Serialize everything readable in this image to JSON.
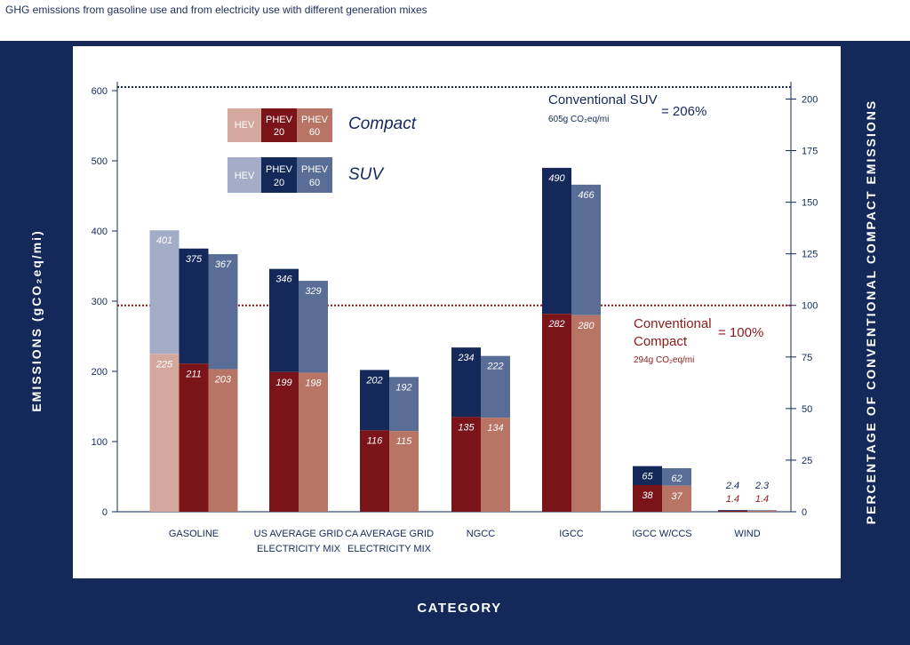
{
  "page_title": "GHG emissions from gasoline use and from electricity use with different generation mixes",
  "legend": {
    "hev": "HEV",
    "phev20_line1": "PHEV",
    "phev20_line2": "20",
    "phev60_line1": "PHEV",
    "phev60_line2": "60",
    "compact_label": "Compact",
    "suv_label": "SUV"
  },
  "colors": {
    "compact_hev": "#d4a89d",
    "compact_phev20": "#7a1419",
    "compact_phev60": "#b87566",
    "suv_hev": "#a3adc8",
    "suv_phev20": "#14285a",
    "suv_phev60": "#5a6d96",
    "frame": "#14285a",
    "ref_suv": "#14285a",
    "ref_compact": "#8b1a1a"
  },
  "annotations": {
    "suv_ref_name": "Conventional SUV",
    "suv_ref_value": "605g CO₂eq/mi",
    "suv_ref_pct": "= 206%",
    "compact_ref_name_line1": "Conventional",
    "compact_ref_name_line2": "Compact",
    "compact_ref_value": "294g CO₂eq/mi",
    "compact_ref_pct": "= 100%"
  },
  "chart_data": {
    "type": "bar",
    "xlabel": "CATEGORY",
    "ylabel": "EMISSIONS (gCO₂eq/mi)",
    "y2label": "PERCENTAGE OF CONVENTIONAL COMPACT EMISSIONS",
    "ylim": [
      0,
      600
    ],
    "yticks": [
      0,
      100,
      200,
      300,
      400,
      500,
      600
    ],
    "y2lim": [
      0,
      206
    ],
    "y2ticks": [
      0,
      25,
      50,
      75,
      100,
      125,
      150,
      175,
      200
    ],
    "reference_lines": [
      {
        "name": "Conventional SUV",
        "value": 605
      },
      {
        "name": "Conventional Compact",
        "value": 294
      }
    ],
    "categories": [
      [
        "GASOLINE"
      ],
      [
        "US AVERAGE GRID",
        "ELECTRICITY MIX"
      ],
      [
        "CA AVERAGE GRID",
        "ELECTRICITY MIX"
      ],
      [
        "NGCC"
      ],
      [
        "IGCC"
      ],
      [
        "IGCC W/CCS"
      ],
      [
        "WIND"
      ]
    ],
    "series": [
      {
        "name": "HEV",
        "suv": [
          401,
          null,
          null,
          null,
          null,
          null,
          null
        ],
        "compact": [
          225,
          null,
          null,
          null,
          null,
          null,
          null
        ],
        "suv_labels": [
          "401",
          "",
          "",
          "",
          "",
          "",
          ""
        ],
        "compact_labels": [
          "225",
          "",
          "",
          "",
          "",
          "",
          ""
        ]
      },
      {
        "name": "PHEV 20",
        "suv": [
          375,
          346,
          202,
          234,
          490,
          65,
          2.4
        ],
        "compact": [
          211,
          199,
          116,
          135,
          282,
          38,
          1.4
        ],
        "suv_labels": [
          "375",
          "346",
          "202",
          "234",
          "490",
          "65",
          "2.4"
        ],
        "compact_labels": [
          "211",
          "199",
          "116",
          "135",
          "282",
          "38",
          "1.4"
        ]
      },
      {
        "name": "PHEV 60",
        "suv": [
          367,
          329,
          192,
          222,
          466,
          62,
          2.3
        ],
        "compact": [
          203,
          198,
          115,
          134,
          280,
          37,
          1.4
        ],
        "suv_labels": [
          "367",
          "329",
          "192",
          "222",
          "466",
          "62",
          "2.3"
        ],
        "compact_labels": [
          "203",
          "198",
          "115",
          "134",
          "280",
          "37",
          "1.4"
        ]
      }
    ]
  }
}
